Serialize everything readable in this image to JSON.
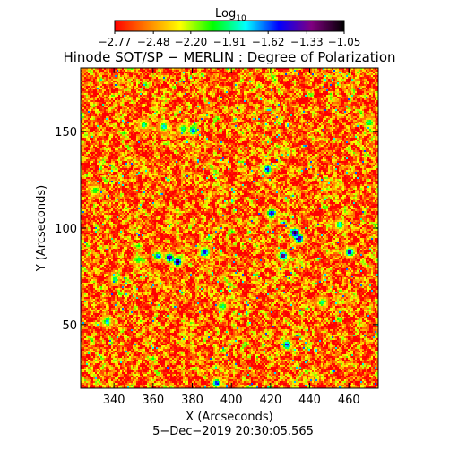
{
  "chart_data": {
    "type": "heatmap",
    "title": "Hinode SOT/SP − MERLIN : Degree of Polarization",
    "xlabel": "X (Arcseconds)",
    "ylabel": "Y (Arcseconds)",
    "xlim": [
      323,
      475
    ],
    "ylim": [
      17,
      183
    ],
    "x_ticks": [
      "340",
      "360",
      "380",
      "400",
      "420",
      "440",
      "460"
    ],
    "x_tick_values": [
      340,
      360,
      380,
      400,
      420,
      440,
      460
    ],
    "y_ticks": [
      "50",
      "100",
      "150"
    ],
    "y_tick_values": [
      50,
      100,
      150
    ],
    "colorbar": {
      "label_main": "Log",
      "label_sub": "10",
      "range": [
        -2.77,
        -1.05
      ],
      "ticks": [
        "−2.77",
        "−2.48",
        "−2.20",
        "−1.91",
        "−1.62",
        "−1.33",
        "−1.05"
      ],
      "tick_values": [
        -2.77,
        -2.48,
        -2.2,
        -1.91,
        -1.62,
        -1.33,
        -1.05
      ],
      "colormap": [
        "#ff0000",
        "#ff8000",
        "#ffff00",
        "#00ff00",
        "#00ffff",
        "#0000ff",
        "#800080",
        "#000000"
      ]
    },
    "background_level": -2.55,
    "features": [
      {
        "x": 355,
        "y": 154,
        "value": -1.85
      },
      {
        "x": 365,
        "y": 153,
        "value": -1.75
      },
      {
        "x": 375,
        "y": 152,
        "value": -1.8
      },
      {
        "x": 380,
        "y": 151,
        "value": -1.55
      },
      {
        "x": 368,
        "y": 85,
        "value": -1.15
      },
      {
        "x": 372,
        "y": 83,
        "value": -1.1
      },
      {
        "x": 362,
        "y": 86,
        "value": -1.6
      },
      {
        "x": 352,
        "y": 84,
        "value": -1.9
      },
      {
        "x": 386,
        "y": 88,
        "value": -1.4
      },
      {
        "x": 418,
        "y": 131,
        "value": -1.35
      },
      {
        "x": 420,
        "y": 108,
        "value": -1.3
      },
      {
        "x": 432,
        "y": 98,
        "value": -1.1
      },
      {
        "x": 434,
        "y": 95,
        "value": -1.15
      },
      {
        "x": 426,
        "y": 86,
        "value": -1.2
      },
      {
        "x": 455,
        "y": 102,
        "value": -1.7
      },
      {
        "x": 460,
        "y": 88,
        "value": -1.4
      },
      {
        "x": 428,
        "y": 40,
        "value": -1.45
      },
      {
        "x": 336,
        "y": 52,
        "value": -1.75
      },
      {
        "x": 392,
        "y": 20,
        "value": -1.5
      },
      {
        "x": 340,
        "y": 74,
        "value": -1.95
      },
      {
        "x": 395,
        "y": 60,
        "value": -1.9
      },
      {
        "x": 446,
        "y": 62,
        "value": -1.85
      },
      {
        "x": 330,
        "y": 120,
        "value": -1.9
      },
      {
        "x": 470,
        "y": 155,
        "value": -1.85
      }
    ],
    "date_text": "5−Dec−2019 20:30:05.565"
  }
}
